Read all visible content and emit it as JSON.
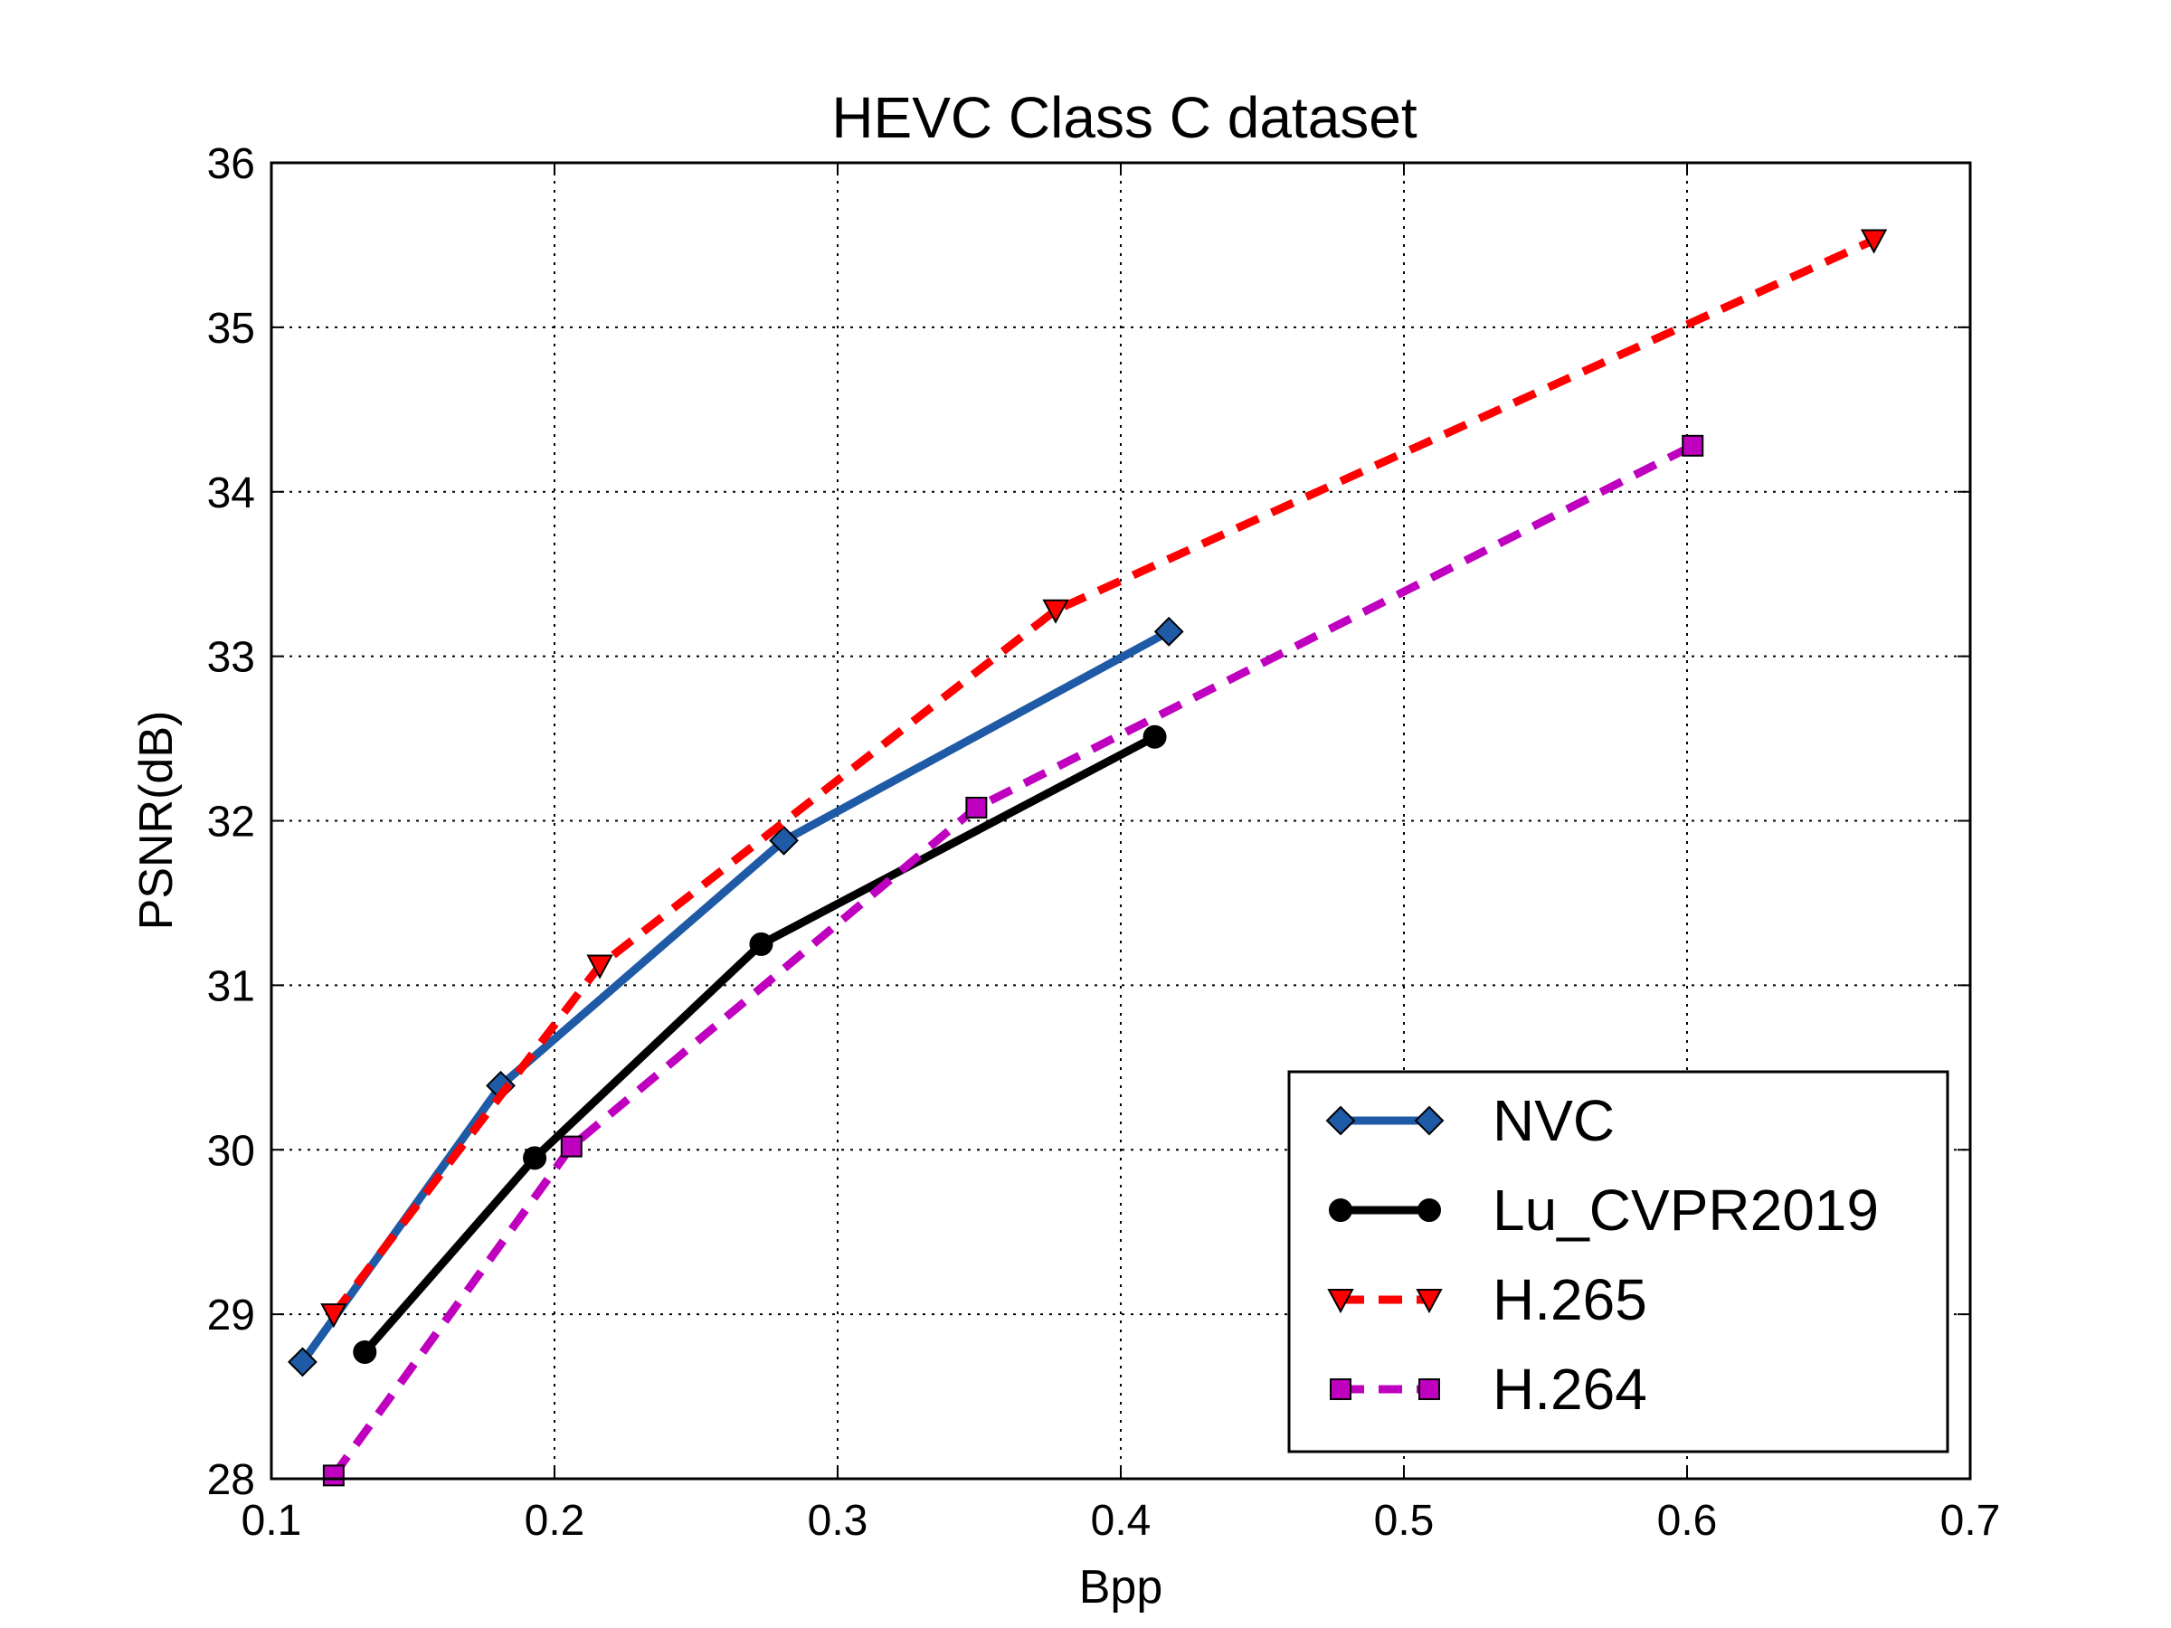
{
  "chart_data": {
    "type": "line",
    "title": "HEVC Class C dataset",
    "xlabel": "Bpp",
    "ylabel": "PSNR(dB)",
    "xlim": [
      0.1,
      0.7
    ],
    "ylim": [
      28,
      36
    ],
    "xticks": [
      "0.1",
      "0.2",
      "0.3",
      "0.4",
      "0.5",
      "0.6",
      "0.7"
    ],
    "yticks": [
      "28",
      "29",
      "30",
      "31",
      "32",
      "33",
      "34",
      "35",
      "36"
    ],
    "grid": true,
    "legend_position": "bottom-right",
    "series": [
      {
        "name": "NVC",
        "color": "#1f5aa6",
        "line_style": "solid",
        "marker": "diamond",
        "marker_color": "#1f5aa6",
        "x": [
          0.111,
          0.181,
          0.281,
          0.417
        ],
        "y": [
          28.71,
          30.39,
          31.88,
          33.15
        ]
      },
      {
        "name": "Lu_CVPR2019",
        "color": "#000000",
        "line_style": "solid",
        "marker": "circle",
        "marker_color": "#000000",
        "x": [
          0.133,
          0.193,
          0.273,
          0.412
        ],
        "y": [
          28.77,
          29.95,
          31.25,
          32.51
        ]
      },
      {
        "name": "H.265",
        "color": "#ff0000",
        "line_style": "dashed",
        "marker": "triangle-down",
        "marker_color": "#ff0000",
        "x": [
          0.122,
          0.216,
          0.377,
          0.666
        ],
        "y": [
          29.0,
          31.12,
          33.28,
          35.53
        ]
      },
      {
        "name": "H.264",
        "color": "#bf00bf",
        "line_style": "dashed",
        "marker": "square",
        "marker_color": "#bf00bf",
        "x": [
          0.122,
          0.206,
          0.349,
          0.602
        ],
        "y": [
          28.02,
          30.02,
          32.08,
          34.28
        ]
      }
    ]
  }
}
